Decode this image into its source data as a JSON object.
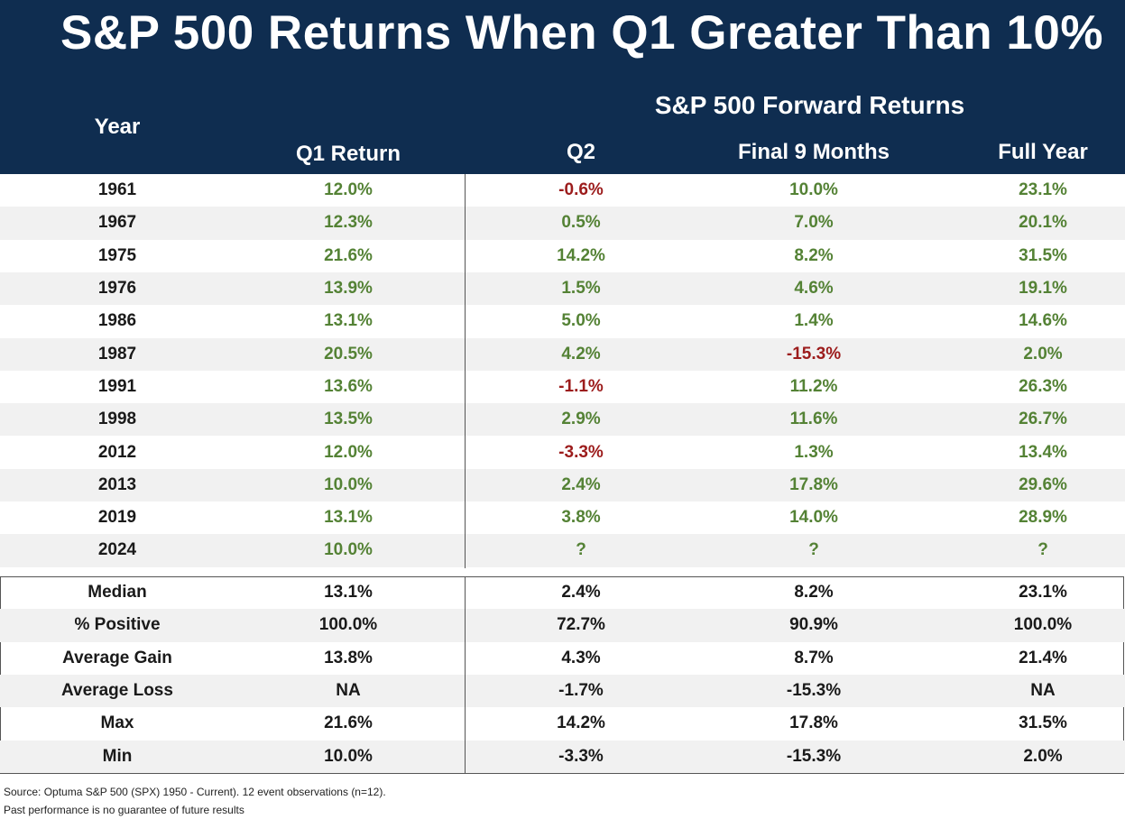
{
  "title": "S&P 500 Returns When Q1 Greater Than 10%",
  "headers": {
    "year": "Year",
    "q1": "Q1 Return",
    "forward_group": "S&P 500 Forward Returns",
    "q2": "Q2",
    "final9": "Final 9 Months",
    "full": "Full Year"
  },
  "colors": {
    "header_bg": "#0f2d50",
    "positive": "#548235",
    "negative": "#9c1c1c",
    "row_shade": "#f1f1f1"
  },
  "chart_data": {
    "type": "table",
    "title": "S&P 500 Returns When Q1 Greater Than 10%",
    "columns": [
      "Year",
      "Q1 Return",
      "Q2",
      "Final 9 Months",
      "Full Year"
    ],
    "rows": [
      [
        "1961",
        "12.0%",
        "-0.6%",
        "10.0%",
        "23.1%"
      ],
      [
        "1967",
        "12.3%",
        "0.5%",
        "7.0%",
        "20.1%"
      ],
      [
        "1975",
        "21.6%",
        "14.2%",
        "8.2%",
        "31.5%"
      ],
      [
        "1976",
        "13.9%",
        "1.5%",
        "4.6%",
        "19.1%"
      ],
      [
        "1986",
        "13.1%",
        "5.0%",
        "1.4%",
        "14.6%"
      ],
      [
        "1987",
        "20.5%",
        "4.2%",
        "-15.3%",
        "2.0%"
      ],
      [
        "1991",
        "13.6%",
        "-1.1%",
        "11.2%",
        "26.3%"
      ],
      [
        "1998",
        "13.5%",
        "2.9%",
        "11.6%",
        "26.7%"
      ],
      [
        "2012",
        "12.0%",
        "-3.3%",
        "1.3%",
        "13.4%"
      ],
      [
        "2013",
        "10.0%",
        "2.4%",
        "17.8%",
        "29.6%"
      ],
      [
        "2019",
        "13.1%",
        "3.8%",
        "14.0%",
        "28.9%"
      ],
      [
        "2024",
        "10.0%",
        "?",
        "?",
        "?"
      ]
    ],
    "stats": [
      [
        "Median",
        "13.1%",
        "2.4%",
        "8.2%",
        "23.1%"
      ],
      [
        "% Positive",
        "100.0%",
        "72.7%",
        "90.9%",
        "100.0%"
      ],
      [
        "Average Gain",
        "13.8%",
        "4.3%",
        "8.7%",
        "21.4%"
      ],
      [
        "Average Loss",
        "NA",
        "-1.7%",
        "-15.3%",
        "NA"
      ],
      [
        "Max",
        "21.6%",
        "14.2%",
        "17.8%",
        "31.5%"
      ],
      [
        "Min",
        "10.0%",
        "-3.3%",
        "-15.3%",
        "2.0%"
      ]
    ]
  },
  "footer": {
    "source": "Source: Optuma S&P 500 (SPX) 1950 - Current). 12 event observations (n=12).",
    "disclaimer": "Past performance is no guarantee of future results"
  }
}
